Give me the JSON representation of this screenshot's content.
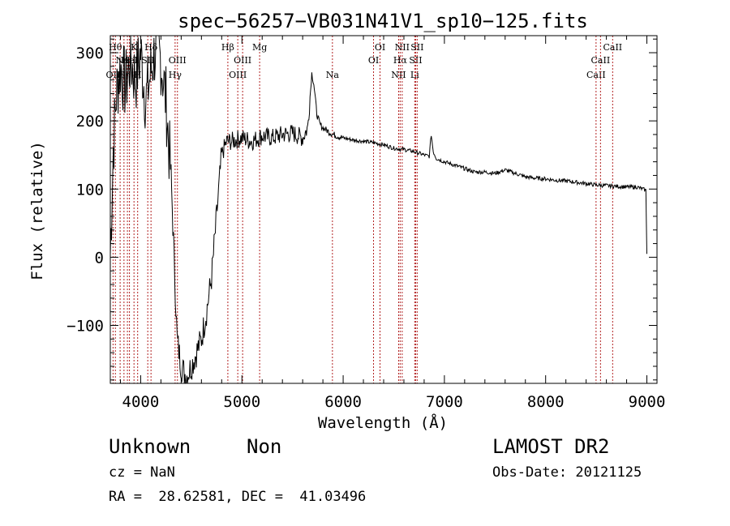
{
  "chart_data": {
    "type": "line",
    "title": "spec−56257−VB031N41V1_sp10−125.fits",
    "xlabel": "Wavelength (Å)",
    "ylabel": "Flux (relative)",
    "xlim": [
      3700,
      9100
    ],
    "ylim": [
      -185,
      325
    ],
    "xticks": [
      4000,
      5000,
      6000,
      7000,
      8000,
      9000
    ],
    "xtick_labels": [
      "4000",
      "5000",
      "6000",
      "7000",
      "8000",
      "9000"
    ],
    "yticks": [
      -100,
      0,
      100,
      200,
      300
    ],
    "ytick_labels": [
      "−100",
      "0",
      "100",
      "200",
      "300"
    ],
    "grid": false,
    "series": [
      {
        "color": "#000000",
        "x": [
          3700,
          3730,
          3760,
          3800,
          3850,
          3900,
          3950,
          4000,
          4050,
          4100,
          4150,
          4200,
          4250,
          4280,
          4300,
          4330,
          4360,
          4400,
          4450,
          4500,
          4550,
          4600,
          4650,
          4700,
          4750,
          4800,
          4850,
          4900,
          5000,
          5100,
          5200,
          5300,
          5400,
          5500,
          5600,
          5650,
          5690,
          5710,
          5740,
          5770,
          5800,
          5900,
          6000,
          6100,
          6200,
          6300,
          6400,
          6500,
          6600,
          6700,
          6800,
          6850,
          6870,
          6890,
          6920,
          7000,
          7100,
          7200,
          7300,
          7400,
          7500,
          7600,
          7700,
          7800,
          7900,
          8000,
          8100,
          8200,
          8300,
          8400,
          8500,
          8600,
          8700,
          8800,
          8900,
          8960,
          8990,
          9000
        ],
        "y": [
          5,
          160,
          240,
          280,
          250,
          290,
          260,
          300,
          230,
          270,
          310,
          290,
          230,
          160,
          120,
          0,
          -120,
          -160,
          -175,
          -160,
          -140,
          -120,
          -80,
          -30,
          60,
          150,
          170,
          170,
          175,
          170,
          178,
          175,
          180,
          182,
          175,
          190,
          270,
          255,
          210,
          195,
          190,
          180,
          175,
          172,
          170,
          168,
          165,
          160,
          158,
          155,
          150,
          148,
          180,
          155,
          145,
          140,
          135,
          130,
          125,
          125,
          123,
          128,
          123,
          118,
          116,
          115,
          113,
          112,
          110,
          108,
          106,
          105,
          104,
          103,
          103,
          100,
          98,
          5
        ]
      }
    ],
    "lines": [
      {
        "x": 3727,
        "label": "OII",
        "row": 3
      },
      {
        "x": 3750,
        "label": "Hθ",
        "row": 1
      },
      {
        "x": 3797,
        "label": "",
        "row": 1
      },
      {
        "x": 3835,
        "label": "Hη",
        "row": 3
      },
      {
        "x": 3869,
        "label": "NeIII",
        "row": 2
      },
      {
        "x": 3889,
        "label": "HeI",
        "row": 2
      },
      {
        "x": 3934,
        "label": "K",
        "row": 1
      },
      {
        "x": 3970,
        "label": "H",
        "row": 3
      },
      {
        "x": 4070,
        "label": "SII",
        "row": 2
      },
      {
        "x": 4102,
        "label": "Hδ",
        "row": 1
      },
      {
        "x": 4340,
        "label": "Hγ",
        "row": 3
      },
      {
        "x": 4363,
        "label": "OIII",
        "row": 2
      },
      {
        "x": 4861,
        "label": "Hβ",
        "row": 1
      },
      {
        "x": 4959,
        "label": "OIII",
        "row": 3
      },
      {
        "x": 5007,
        "label": "OIII",
        "row": 2
      },
      {
        "x": 5175,
        "label": "Mg",
        "row": 1
      },
      {
        "x": 5894,
        "label": "Na",
        "row": 3
      },
      {
        "x": 6300,
        "label": "OI",
        "row": 2
      },
      {
        "x": 6364,
        "label": "OI",
        "row": 1
      },
      {
        "x": 6548,
        "label": "NII",
        "row": 3
      },
      {
        "x": 6563,
        "label": "Hα",
        "row": 2
      },
      {
        "x": 6583,
        "label": "NII",
        "row": 1
      },
      {
        "x": 6707,
        "label": "Li",
        "row": 3
      },
      {
        "x": 6716,
        "label": "SII",
        "row": 2
      },
      {
        "x": 6731,
        "label": "SII",
        "row": 1
      },
      {
        "x": 8498,
        "label": "CaII",
        "row": 3
      },
      {
        "x": 8542,
        "label": "CaII",
        "row": 2
      },
      {
        "x": 8662,
        "label": "CaII",
        "row": 1
      }
    ]
  },
  "info": {
    "object_class": "Unknown",
    "subclass": "Non",
    "survey": "LAMOST DR2",
    "cz": "cz = NaN",
    "obs_date": "Obs-Date: 20121125",
    "coords": "RA =  28.62581, DEC =  41.03496"
  }
}
